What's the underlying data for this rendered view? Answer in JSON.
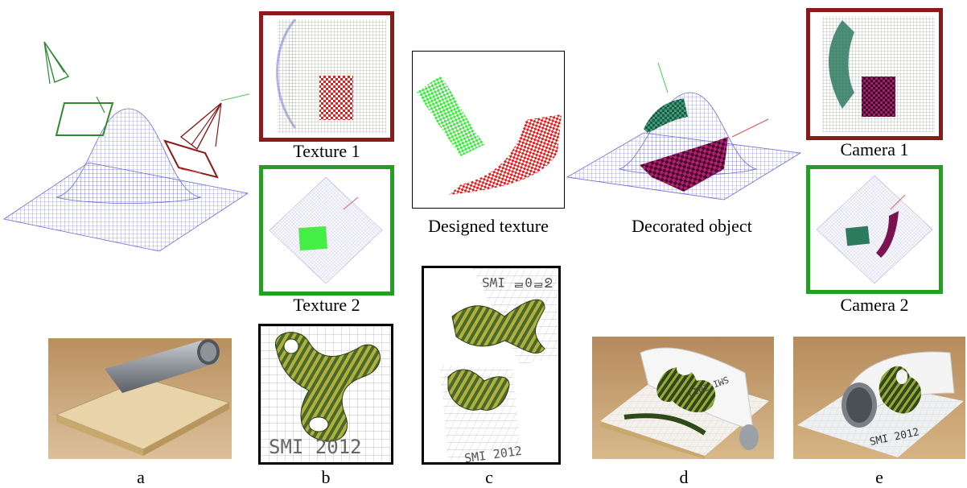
{
  "captions": {
    "texture1": "Texture 1",
    "texture2": "Texture 2",
    "designed": "Designed texture",
    "decorated": "Decorated object",
    "camera1": "Camera 1",
    "camera2": "Camera 2"
  },
  "labels": {
    "a": "a",
    "b": "b",
    "c": "c",
    "d": "d",
    "e": "e"
  },
  "printed_text": {
    "smi": "SMI 2012"
  },
  "colors": {
    "mesh": "#6b6bd6",
    "red_frame": "#8b1a1a",
    "green_frame": "#22a022",
    "texture_red": "#e02020",
    "texture_green": "#33ee33",
    "decor_purple": "#7a1450",
    "decor_teal": "#2e7a5e",
    "wood": "#d9b47a",
    "pipe": "#9aa0a6"
  }
}
